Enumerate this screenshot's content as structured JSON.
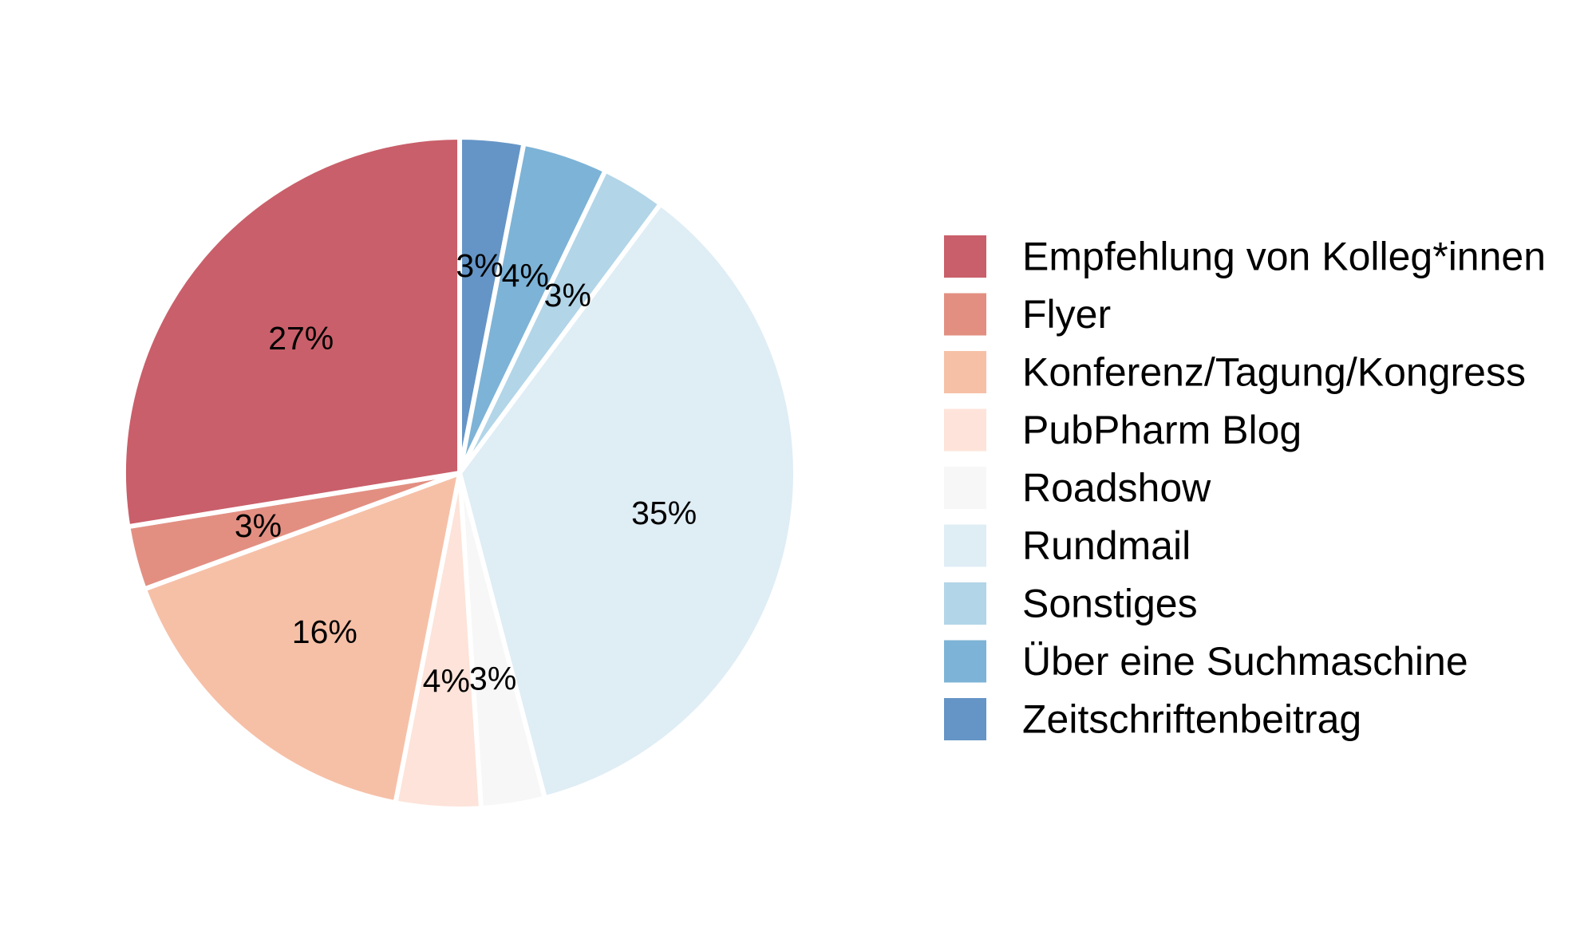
{
  "chart_data": {
    "type": "pie",
    "title": "",
    "direction": "clockwise from 12 o'clock",
    "legend_position": "right",
    "slices": [
      {
        "name": "Zeitschriftenbeitrag",
        "value": 3,
        "label": "3%",
        "color": "#6595C6"
      },
      {
        "name": "Über eine Suchmaschine",
        "value": 4,
        "label": "4%",
        "color": "#7DB3D6"
      },
      {
        "name": "Sonstiges",
        "value": 3,
        "label": "3%",
        "color": "#B2D5E8"
      },
      {
        "name": "Rundmail",
        "value": 35,
        "label": "35%",
        "color": "#DFEDF5"
      },
      {
        "name": "Roadshow",
        "value": 3,
        "label": "3%",
        "color": "#F7F7F7"
      },
      {
        "name": "PubPharm Blog",
        "value": 4,
        "label": "4%",
        "color": "#FDE3D9"
      },
      {
        "name": "Konferenz/Tagung/Kongress",
        "value": 16,
        "label": "16%",
        "color": "#F6C0A7"
      },
      {
        "name": "Flyer",
        "value": 3,
        "label": "3%",
        "color": "#E28F82"
      },
      {
        "name": "Empfehlung von Kolleg*innen",
        "value": 27,
        "label": "27%",
        "color": "#C95F6A"
      }
    ],
    "legend": [
      {
        "name": "Empfehlung von Kolleg*innen",
        "color": "#C95F6A"
      },
      {
        "name": "Flyer",
        "color": "#E28F82"
      },
      {
        "name": "Konferenz/Tagung/Kongress",
        "color": "#F6C0A7"
      },
      {
        "name": "PubPharm Blog",
        "color": "#FDE3D9"
      },
      {
        "name": "Roadshow",
        "color": "#F7F7F7"
      },
      {
        "name": "Rundmail",
        "color": "#DFEDF5"
      },
      {
        "name": "Sonstiges",
        "color": "#B2D5E8"
      },
      {
        "name": "Über eine Suchmaschine",
        "color": "#7DB3D6"
      },
      {
        "name": "Zeitschriftenbeitrag",
        "color": "#6595C6"
      }
    ]
  }
}
